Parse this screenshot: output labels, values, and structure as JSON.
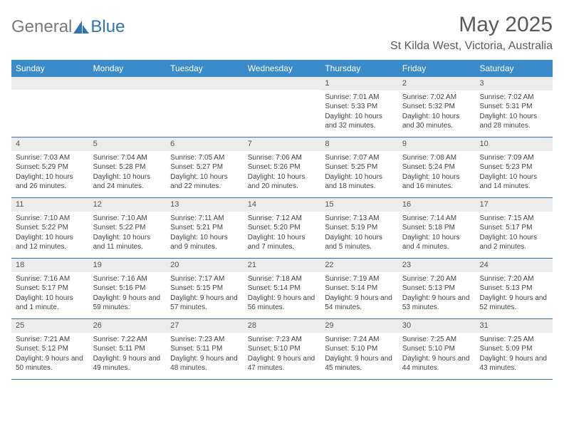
{
  "logo": {
    "text_general": "General",
    "text_blue": "Blue",
    "colors": {
      "general": "#7a7a7a",
      "blue": "#2f74b5",
      "shape": "#2f74b5"
    }
  },
  "header": {
    "month_title": "May 2025",
    "location": "St Kilda West, Victoria, Australia"
  },
  "colors": {
    "header_bg": "#3b8bc9",
    "header_text": "#ffffff",
    "daynum_bg": "#ececec",
    "rule": "#3b6fa0",
    "text": "#444444"
  },
  "days_of_week": [
    "Sunday",
    "Monday",
    "Tuesday",
    "Wednesday",
    "Thursday",
    "Friday",
    "Saturday"
  ],
  "weeks": [
    [
      {
        "empty": true
      },
      {
        "empty": true
      },
      {
        "empty": true
      },
      {
        "empty": true
      },
      {
        "num": "1",
        "sunrise": "Sunrise: 7:01 AM",
        "sunset": "Sunset: 5:33 PM",
        "daylight": "Daylight: 10 hours and 32 minutes."
      },
      {
        "num": "2",
        "sunrise": "Sunrise: 7:02 AM",
        "sunset": "Sunset: 5:32 PM",
        "daylight": "Daylight: 10 hours and 30 minutes."
      },
      {
        "num": "3",
        "sunrise": "Sunrise: 7:02 AM",
        "sunset": "Sunset: 5:31 PM",
        "daylight": "Daylight: 10 hours and 28 minutes."
      }
    ],
    [
      {
        "num": "4",
        "sunrise": "Sunrise: 7:03 AM",
        "sunset": "Sunset: 5:29 PM",
        "daylight": "Daylight: 10 hours and 26 minutes."
      },
      {
        "num": "5",
        "sunrise": "Sunrise: 7:04 AM",
        "sunset": "Sunset: 5:28 PM",
        "daylight": "Daylight: 10 hours and 24 minutes."
      },
      {
        "num": "6",
        "sunrise": "Sunrise: 7:05 AM",
        "sunset": "Sunset: 5:27 PM",
        "daylight": "Daylight: 10 hours and 22 minutes."
      },
      {
        "num": "7",
        "sunrise": "Sunrise: 7:06 AM",
        "sunset": "Sunset: 5:26 PM",
        "daylight": "Daylight: 10 hours and 20 minutes."
      },
      {
        "num": "8",
        "sunrise": "Sunrise: 7:07 AM",
        "sunset": "Sunset: 5:25 PM",
        "daylight": "Daylight: 10 hours and 18 minutes."
      },
      {
        "num": "9",
        "sunrise": "Sunrise: 7:08 AM",
        "sunset": "Sunset: 5:24 PM",
        "daylight": "Daylight: 10 hours and 16 minutes."
      },
      {
        "num": "10",
        "sunrise": "Sunrise: 7:09 AM",
        "sunset": "Sunset: 5:23 PM",
        "daylight": "Daylight: 10 hours and 14 minutes."
      }
    ],
    [
      {
        "num": "11",
        "sunrise": "Sunrise: 7:10 AM",
        "sunset": "Sunset: 5:22 PM",
        "daylight": "Daylight: 10 hours and 12 minutes."
      },
      {
        "num": "12",
        "sunrise": "Sunrise: 7:10 AM",
        "sunset": "Sunset: 5:22 PM",
        "daylight": "Daylight: 10 hours and 11 minutes."
      },
      {
        "num": "13",
        "sunrise": "Sunrise: 7:11 AM",
        "sunset": "Sunset: 5:21 PM",
        "daylight": "Daylight: 10 hours and 9 minutes."
      },
      {
        "num": "14",
        "sunrise": "Sunrise: 7:12 AM",
        "sunset": "Sunset: 5:20 PM",
        "daylight": "Daylight: 10 hours and 7 minutes."
      },
      {
        "num": "15",
        "sunrise": "Sunrise: 7:13 AM",
        "sunset": "Sunset: 5:19 PM",
        "daylight": "Daylight: 10 hours and 5 minutes."
      },
      {
        "num": "16",
        "sunrise": "Sunrise: 7:14 AM",
        "sunset": "Sunset: 5:18 PM",
        "daylight": "Daylight: 10 hours and 4 minutes."
      },
      {
        "num": "17",
        "sunrise": "Sunrise: 7:15 AM",
        "sunset": "Sunset: 5:17 PM",
        "daylight": "Daylight: 10 hours and 2 minutes."
      }
    ],
    [
      {
        "num": "18",
        "sunrise": "Sunrise: 7:16 AM",
        "sunset": "Sunset: 5:17 PM",
        "daylight": "Daylight: 10 hours and 1 minute."
      },
      {
        "num": "19",
        "sunrise": "Sunrise: 7:16 AM",
        "sunset": "Sunset: 5:16 PM",
        "daylight": "Daylight: 9 hours and 59 minutes."
      },
      {
        "num": "20",
        "sunrise": "Sunrise: 7:17 AM",
        "sunset": "Sunset: 5:15 PM",
        "daylight": "Daylight: 9 hours and 57 minutes."
      },
      {
        "num": "21",
        "sunrise": "Sunrise: 7:18 AM",
        "sunset": "Sunset: 5:14 PM",
        "daylight": "Daylight: 9 hours and 56 minutes."
      },
      {
        "num": "22",
        "sunrise": "Sunrise: 7:19 AM",
        "sunset": "Sunset: 5:14 PM",
        "daylight": "Daylight: 9 hours and 54 minutes."
      },
      {
        "num": "23",
        "sunrise": "Sunrise: 7:20 AM",
        "sunset": "Sunset: 5:13 PM",
        "daylight": "Daylight: 9 hours and 53 minutes."
      },
      {
        "num": "24",
        "sunrise": "Sunrise: 7:20 AM",
        "sunset": "Sunset: 5:13 PM",
        "daylight": "Daylight: 9 hours and 52 minutes."
      }
    ],
    [
      {
        "num": "25",
        "sunrise": "Sunrise: 7:21 AM",
        "sunset": "Sunset: 5:12 PM",
        "daylight": "Daylight: 9 hours and 50 minutes."
      },
      {
        "num": "26",
        "sunrise": "Sunrise: 7:22 AM",
        "sunset": "Sunset: 5:11 PM",
        "daylight": "Daylight: 9 hours and 49 minutes."
      },
      {
        "num": "27",
        "sunrise": "Sunrise: 7:23 AM",
        "sunset": "Sunset: 5:11 PM",
        "daylight": "Daylight: 9 hours and 48 minutes."
      },
      {
        "num": "28",
        "sunrise": "Sunrise: 7:23 AM",
        "sunset": "Sunset: 5:10 PM",
        "daylight": "Daylight: 9 hours and 47 minutes."
      },
      {
        "num": "29",
        "sunrise": "Sunrise: 7:24 AM",
        "sunset": "Sunset: 5:10 PM",
        "daylight": "Daylight: 9 hours and 45 minutes."
      },
      {
        "num": "30",
        "sunrise": "Sunrise: 7:25 AM",
        "sunset": "Sunset: 5:10 PM",
        "daylight": "Daylight: 9 hours and 44 minutes."
      },
      {
        "num": "31",
        "sunrise": "Sunrise: 7:25 AM",
        "sunset": "Sunset: 5:09 PM",
        "daylight": "Daylight: 9 hours and 43 minutes."
      }
    ]
  ]
}
